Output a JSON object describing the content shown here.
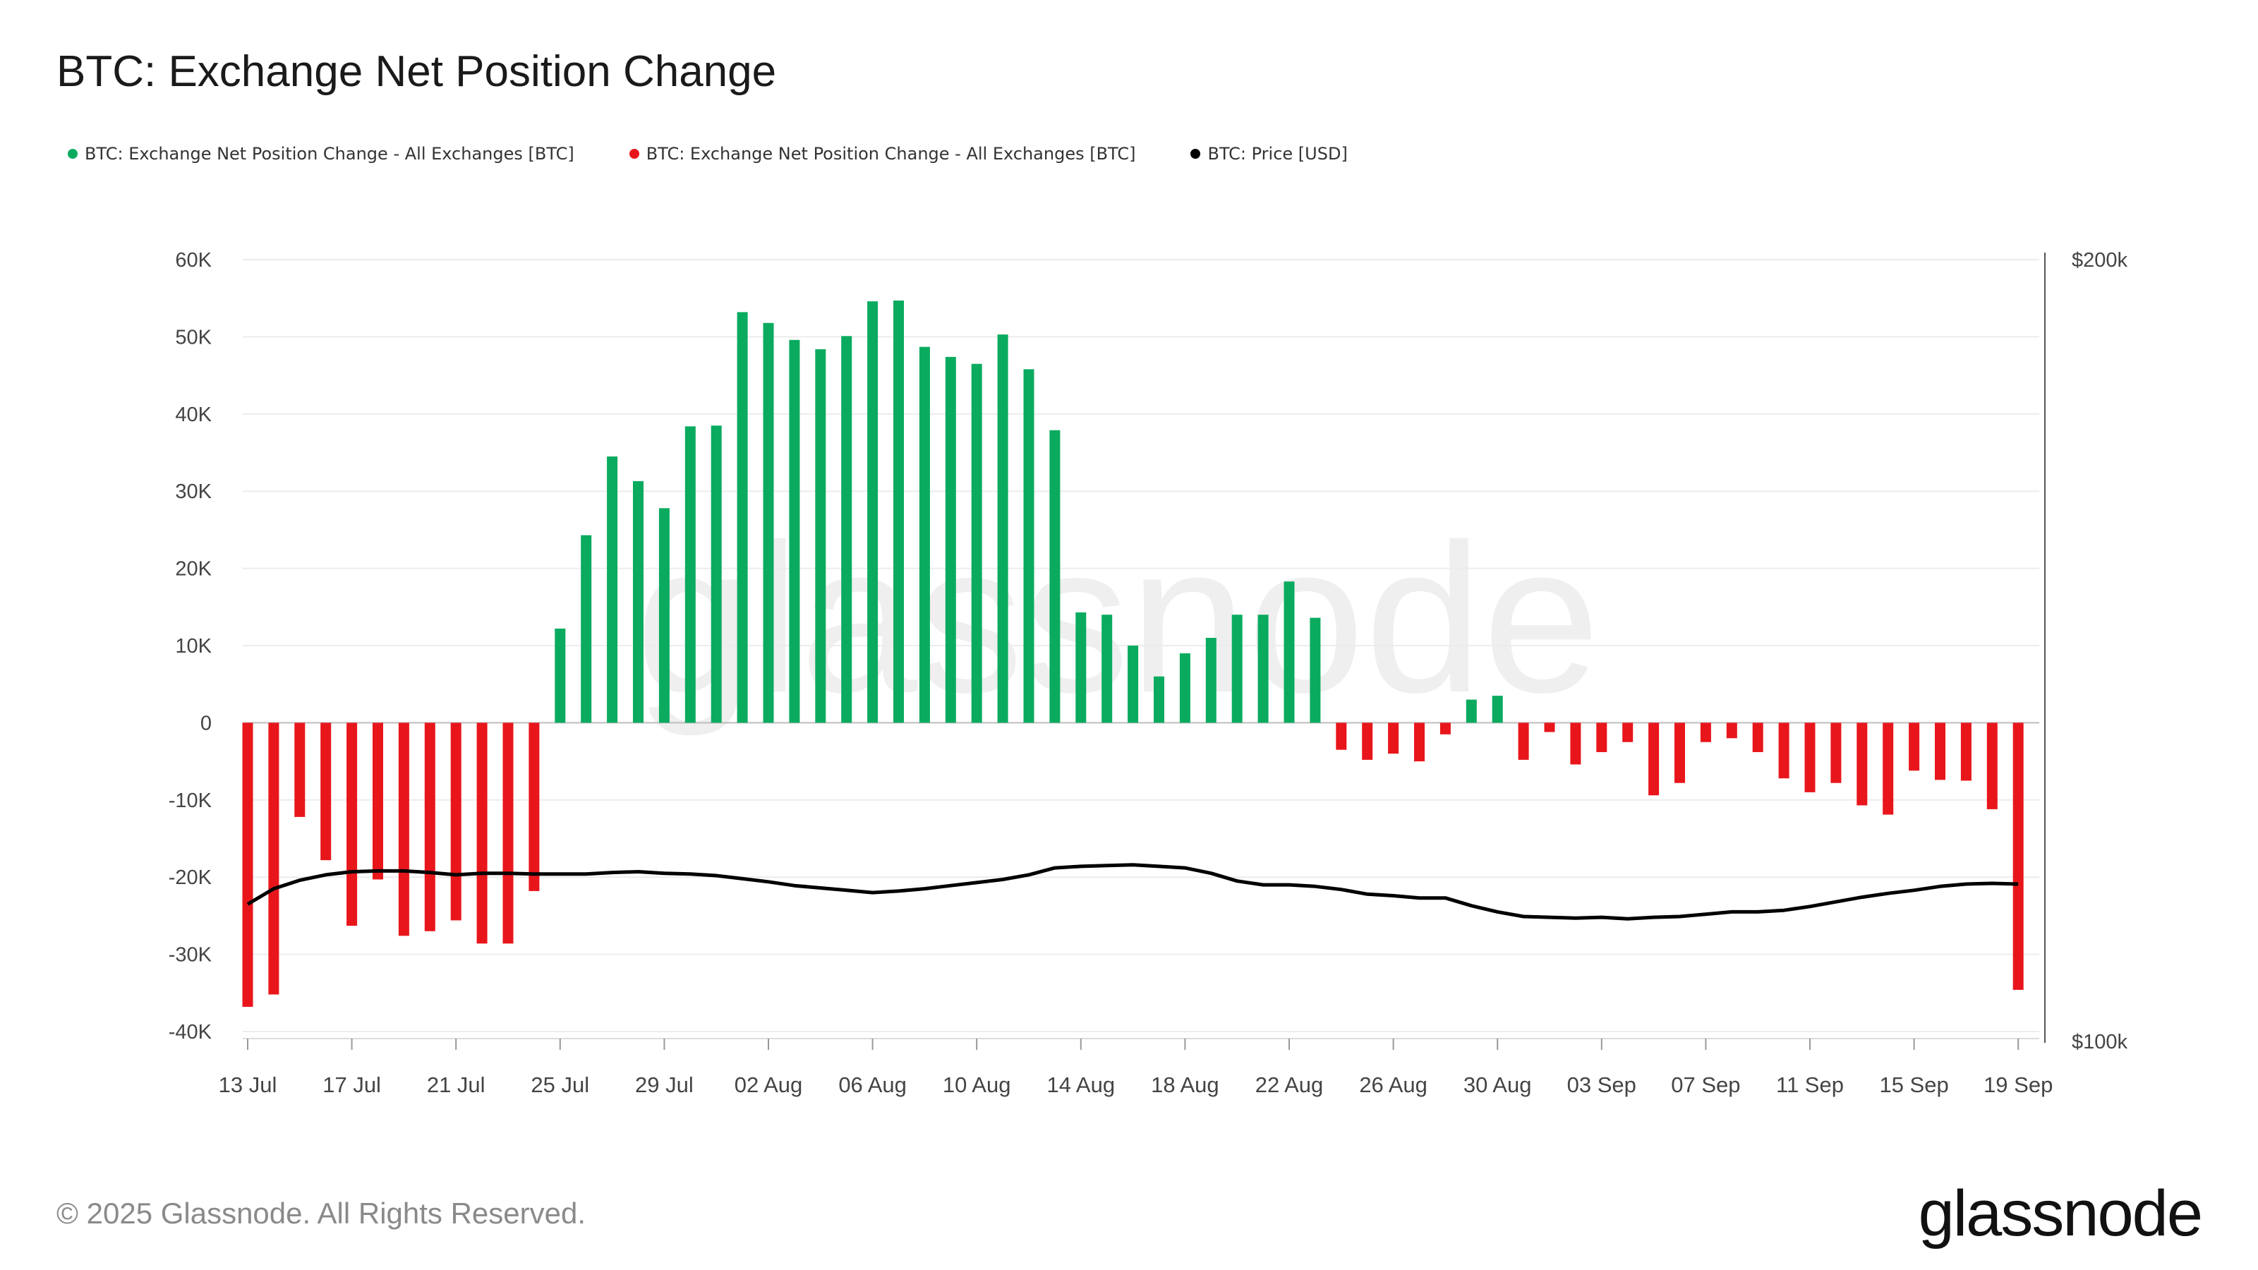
{
  "title": "BTC: Exchange Net Position Change",
  "legend": [
    {
      "label": "BTC: Exchange Net Position Change - All Exchanges [BTC]",
      "color": "#0aab5f"
    },
    {
      "label": "BTC: Exchange Net Position Change - All Exchanges [BTC]",
      "color": "#e8161b"
    },
    {
      "label": "BTC: Price [USD]",
      "color": "#000000"
    }
  ],
  "footer": "© 2025 Glassnode. All Rights Reserved.",
  "brand": "glassnode",
  "watermark": "glassnode",
  "colors": {
    "positive": "#0aab5f",
    "negative": "#e8161b",
    "price": "#000000",
    "grid": "#ececec"
  },
  "chart_data": {
    "type": "bar",
    "title": "BTC: Exchange Net Position Change",
    "xlabel": "",
    "ylabel": "",
    "ylim": [
      -40000,
      60000
    ],
    "y_ticks": [
      "60K",
      "50K",
      "40K",
      "30K",
      "20K",
      "10K",
      "0",
      "-10K",
      "-20K",
      "-30K",
      "-40K"
    ],
    "y_tick_values": [
      60000,
      50000,
      40000,
      30000,
      20000,
      10000,
      0,
      -10000,
      -20000,
      -30000,
      -40000
    ],
    "y2_ticks": [
      "$200k",
      "$100k"
    ],
    "y2lim": [
      100000,
      200000
    ],
    "x_tick_labels": [
      "13 Jul",
      "17 Jul",
      "21 Jul",
      "25 Jul",
      "29 Jul",
      "02 Aug",
      "06 Aug",
      "10 Aug",
      "14 Aug",
      "18 Aug",
      "22 Aug",
      "26 Aug",
      "30 Aug",
      "03 Sep",
      "07 Sep",
      "11 Sep",
      "15 Sep",
      "19 Sep"
    ],
    "start_date": "13 Jul",
    "end_date": "19 Sep",
    "grid": true,
    "series": [
      {
        "name": "BTC: Exchange Net Position Change - All Exchanges [BTC]",
        "axis": "left",
        "values": [
          -36800,
          -35200,
          -12200,
          -17800,
          -26300,
          -20300,
          -27600,
          -27000,
          -25600,
          -28600,
          -28600,
          -21800,
          12200,
          24300,
          34500,
          31300,
          27800,
          38400,
          38500,
          53200,
          51800,
          49600,
          48400,
          50100,
          54600,
          54700,
          48700,
          47400,
          46500,
          50300,
          45800,
          37900,
          14300,
          14000,
          10000,
          6000,
          9000,
          11000,
          14000,
          14000,
          18300,
          13600,
          -3500,
          -4800,
          -4000,
          -5000,
          -1500,
          3000,
          3500,
          -4800,
          -1200,
          -5400,
          -3800,
          -2500,
          -9400,
          -7800,
          -2500,
          -2000,
          -3800,
          -7200,
          -9000,
          -7800,
          -10700,
          -11900,
          -6200,
          -7400,
          -7500,
          -11200,
          -34600
        ]
      },
      {
        "name": "BTC: Price [USD]",
        "axis": "right",
        "values": [
          116500,
          118500,
          119600,
          120300,
          120700,
          120800,
          120800,
          120600,
          120300,
          120500,
          120500,
          120400,
          120400,
          120400,
          120600,
          120700,
          120500,
          120400,
          120200,
          119800,
          119400,
          118900,
          118600,
          118300,
          118000,
          118200,
          118500,
          118900,
          119300,
          119700,
          120300,
          121200,
          121400,
          121500,
          121600,
          121400,
          121200,
          120500,
          119500,
          119000,
          119000,
          118800,
          118400,
          117800,
          117600,
          117300,
          117300,
          116300,
          115500,
          114900,
          114800,
          114700,
          114800,
          114600,
          114800,
          114900,
          115200,
          115500,
          115500,
          115700,
          116200,
          116800,
          117400,
          117900,
          118300,
          118800,
          119100,
          119200,
          119100
        ]
      }
    ]
  }
}
